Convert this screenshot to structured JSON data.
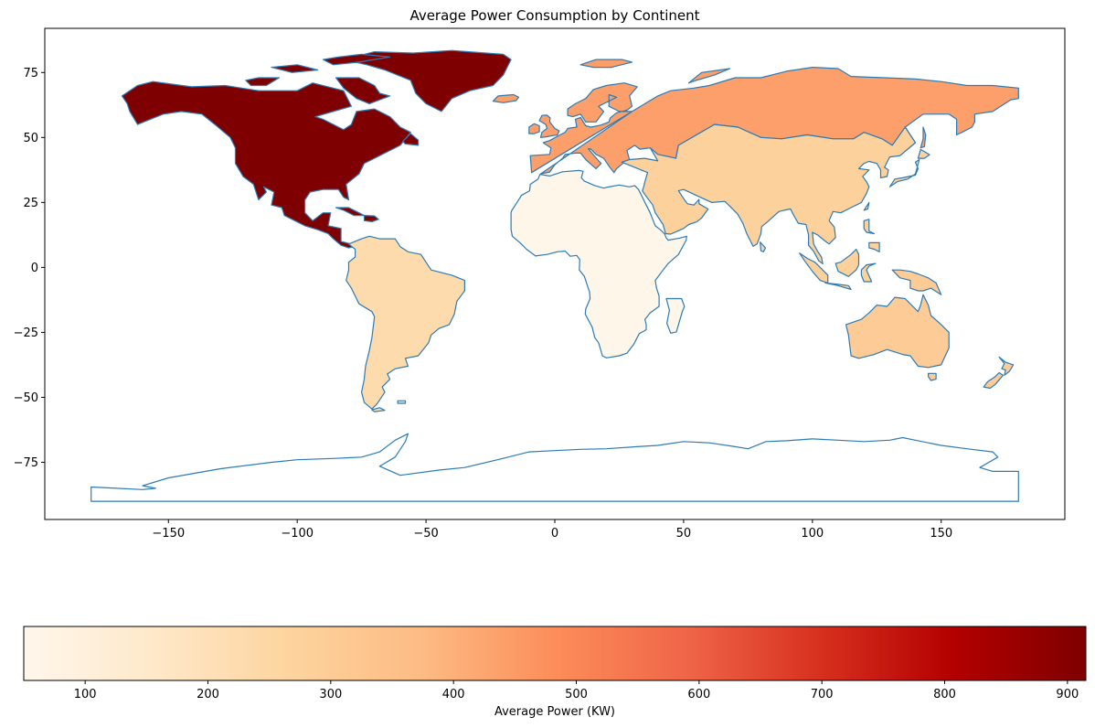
{
  "chart_data": {
    "type": "choropleth",
    "title": "Average Power Consumption by Continent",
    "xlim": [
      -198,
      198
    ],
    "ylim": [
      -97,
      92
    ],
    "x_ticks": [
      -150,
      -100,
      -50,
      0,
      50,
      100,
      150
    ],
    "y_ticks": [
      75,
      50,
      25,
      0,
      -25,
      -50,
      -75
    ],
    "colorbar": {
      "label": "Average Power (KW)",
      "range": [
        50,
        915
      ],
      "ticks": [
        100,
        200,
        300,
        400,
        500,
        600,
        700,
        800,
        900
      ],
      "colormap": "OrRd",
      "stops": [
        "#fff7ec",
        "#fee8c8",
        "#fdd49e",
        "#fdbb84",
        "#fc8d59",
        "#ef6548",
        "#d7301f",
        "#b30000",
        "#7f0000"
      ]
    },
    "regions": [
      {
        "name": "North America",
        "value": 915
      },
      {
        "name": "Europe",
        "value": 440
      },
      {
        "name": "Asia",
        "value": 280
      },
      {
        "name": "Oceania",
        "value": 300
      },
      {
        "name": "South America",
        "value": 230
      },
      {
        "name": "Africa",
        "value": 55
      },
      {
        "name": "Antarctica",
        "value": null
      }
    ]
  }
}
